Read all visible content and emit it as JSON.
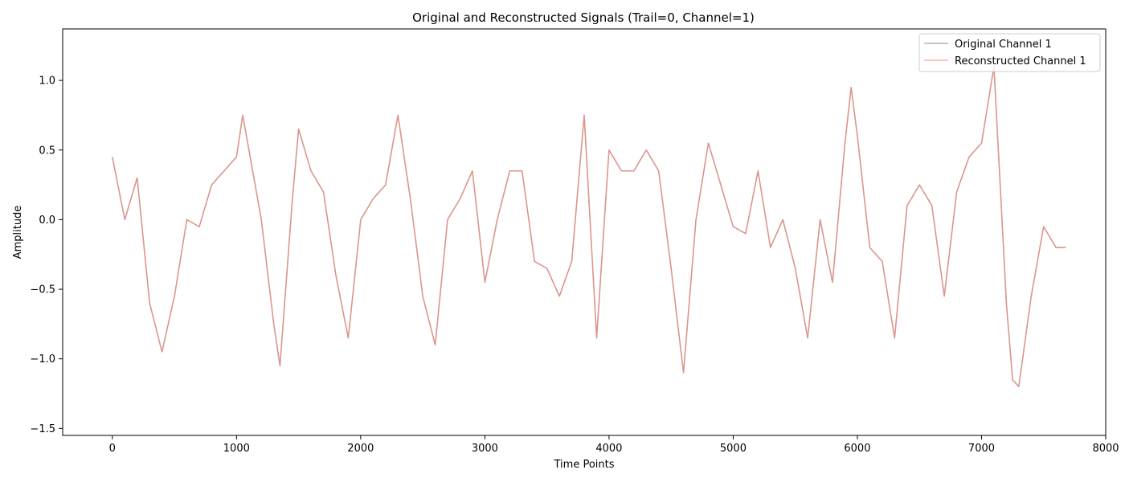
{
  "chart_data": {
    "type": "line",
    "title": "Original and Reconstructed Signals (Trail=0, Channel=1)",
    "xlabel": "Time Points",
    "ylabel": "Amplitude",
    "xlim": [
      -400,
      8000
    ],
    "ylim": [
      -1.55,
      1.37
    ],
    "xticks": [
      0,
      1000,
      2000,
      3000,
      4000,
      5000,
      6000,
      7000,
      8000
    ],
    "yticks": [
      -1.5,
      -1.0,
      -0.5,
      0.0,
      0.5,
      1.0
    ],
    "ytick_labels": [
      "−1.5",
      "−1.0",
      "−0.5",
      "0.0",
      "0.5",
      "1.0"
    ],
    "grid": false,
    "legend_position": "top-right",
    "series": [
      {
        "name": "Original Channel 1",
        "color": "#7f7f7f",
        "opacity": 0.6,
        "x": [
          0,
          100,
          200,
          300,
          400,
          500,
          600,
          700,
          800,
          900,
          1000,
          1050,
          1100,
          1200,
          1300,
          1350,
          1450,
          1500,
          1600,
          1700,
          1800,
          1900,
          2000,
          2100,
          2200,
          2300,
          2400,
          2500,
          2600,
          2700,
          2800,
          2900,
          3000,
          3100,
          3200,
          3300,
          3400,
          3500,
          3600,
          3700,
          3800,
          3900,
          4000,
          4100,
          4200,
          4300,
          4400,
          4500,
          4600,
          4700,
          4800,
          4900,
          5000,
          5100,
          5200,
          5300,
          5400,
          5500,
          5600,
          5700,
          5800,
          5900,
          5950,
          6000,
          6100,
          6200,
          6300,
          6400,
          6500,
          6600,
          6700,
          6800,
          6900,
          7000,
          7100,
          7200,
          7250,
          7300,
          7400,
          7500,
          7600,
          7680
        ],
        "y": [
          0.45,
          0.0,
          0.3,
          -0.6,
          -0.95,
          -0.55,
          0.0,
          -0.05,
          0.25,
          0.35,
          0.45,
          0.75,
          0.5,
          0.0,
          -0.75,
          -1.05,
          0.15,
          0.65,
          0.35,
          0.2,
          -0.4,
          -0.85,
          0.0,
          0.15,
          0.25,
          0.75,
          0.15,
          -0.55,
          -0.9,
          0.0,
          0.15,
          0.35,
          -0.45,
          0.0,
          0.35,
          0.35,
          -0.3,
          -0.35,
          -0.55,
          -0.3,
          0.75,
          -0.85,
          0.5,
          0.35,
          0.35,
          0.5,
          0.35,
          -0.35,
          -1.1,
          0.0,
          0.55,
          0.25,
          -0.05,
          -0.1,
          0.35,
          -0.2,
          0.0,
          -0.35,
          -0.85,
          0.0,
          -0.45,
          0.55,
          0.95,
          0.6,
          -0.2,
          -0.3,
          -0.85,
          0.1,
          0.25,
          0.1,
          -0.55,
          0.2,
          0.45,
          0.55,
          1.1,
          -0.6,
          -1.15,
          -1.2,
          -0.55,
          -0.05,
          -0.2,
          -0.2
        ]
      },
      {
        "name": "Reconstructed Channel 1",
        "color": "#fa8072",
        "opacity": 0.6,
        "x": [
          0,
          100,
          200,
          300,
          400,
          500,
          600,
          700,
          800,
          900,
          1000,
          1050,
          1100,
          1200,
          1300,
          1350,
          1450,
          1500,
          1600,
          1700,
          1800,
          1900,
          2000,
          2100,
          2200,
          2300,
          2400,
          2500,
          2600,
          2700,
          2800,
          2900,
          3000,
          3100,
          3200,
          3300,
          3400,
          3500,
          3600,
          3700,
          3800,
          3900,
          4000,
          4100,
          4200,
          4300,
          4400,
          4500,
          4600,
          4700,
          4800,
          4900,
          5000,
          5100,
          5200,
          5300,
          5400,
          5500,
          5600,
          5700,
          5800,
          5900,
          5950,
          6000,
          6100,
          6200,
          6300,
          6400,
          6500,
          6600,
          6700,
          6800,
          6900,
          7000,
          7100,
          7200,
          7250,
          7300,
          7400,
          7500,
          7600,
          7680
        ],
        "y": [
          0.45,
          0.0,
          0.3,
          -0.6,
          -0.95,
          -0.55,
          0.0,
          -0.05,
          0.25,
          0.35,
          0.45,
          0.75,
          0.5,
          0.0,
          -0.75,
          -1.05,
          0.15,
          0.65,
          0.35,
          0.2,
          -0.4,
          -0.85,
          0.0,
          0.15,
          0.25,
          0.75,
          0.15,
          -0.55,
          -0.9,
          0.0,
          0.15,
          0.35,
          -0.45,
          0.0,
          0.35,
          0.35,
          -0.3,
          -0.35,
          -0.55,
          -0.3,
          0.75,
          -0.85,
          0.5,
          0.35,
          0.35,
          0.5,
          0.35,
          -0.35,
          -1.1,
          0.0,
          0.55,
          0.25,
          -0.05,
          -0.1,
          0.35,
          -0.2,
          0.0,
          -0.35,
          -0.85,
          0.0,
          -0.45,
          0.55,
          0.95,
          0.6,
          -0.2,
          -0.3,
          -0.85,
          0.1,
          0.25,
          0.1,
          -0.55,
          0.2,
          0.45,
          0.55,
          1.1,
          -0.6,
          -1.15,
          -1.2,
          -0.55,
          -0.05,
          -0.2,
          -0.2
        ]
      }
    ]
  }
}
